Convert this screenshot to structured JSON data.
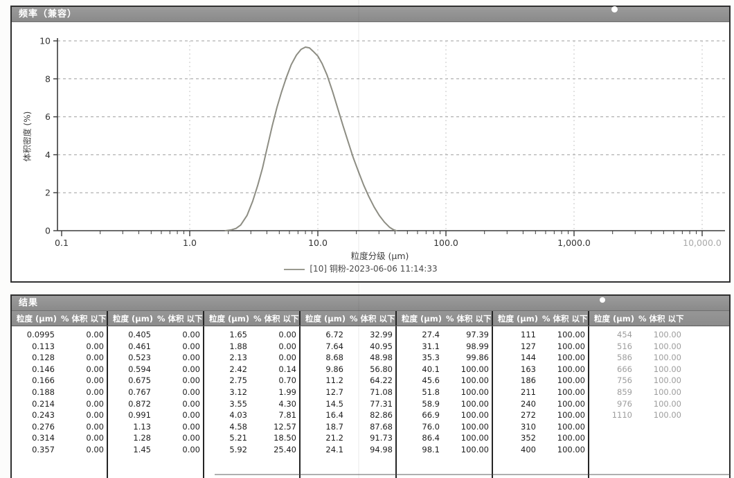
{
  "chart": {
    "panel_title": "频率（兼容）",
    "legend_text": "[10] 铜粉-2023-06-06 11:14:33",
    "colors": {
      "curve": "#8d8d83",
      "axis": "#3a3a3a",
      "h_grid": "#9e9e9e",
      "v_grid": "#c6c6c6",
      "titlebar": "#8f8f8f",
      "faded_tick": "#a9a9a9",
      "tick_text": "#333333"
    }
  },
  "chart_data": {
    "type": "line",
    "title": "频率（兼容）",
    "xlabel": "粒度分级 (μm)",
    "ylabel": "体积密度 (%)",
    "x_scale": "log",
    "xlim": [
      0.1,
      10000
    ],
    "ylim": [
      0,
      10
    ],
    "x_ticks": [
      "0.1",
      "1.0",
      "10.0",
      "100.0",
      "1,000.0",
      "10,000.0"
    ],
    "x_tick_values": [
      0.1,
      1,
      10,
      100,
      1000,
      10000
    ],
    "y_ticks": [
      0,
      2,
      4,
      6,
      8,
      10
    ],
    "grid": true,
    "legend_position": "bottom-center",
    "legend": [
      "[10] 铜粉-2023-06-06 11:14:33"
    ],
    "series": [
      {
        "name": "[10] 铜粉-2023-06-06 11:14:33",
        "points": [
          [
            1.9,
            0.0
          ],
          [
            2.1,
            0.04
          ],
          [
            2.3,
            0.12
          ],
          [
            2.5,
            0.3
          ],
          [
            2.8,
            0.8
          ],
          [
            3.1,
            1.55
          ],
          [
            3.4,
            2.4
          ],
          [
            3.7,
            3.3
          ],
          [
            4.0,
            4.3
          ],
          [
            4.4,
            5.5
          ],
          [
            4.8,
            6.5
          ],
          [
            5.2,
            7.3
          ],
          [
            5.7,
            8.1
          ],
          [
            6.2,
            8.75
          ],
          [
            6.8,
            9.25
          ],
          [
            7.4,
            9.55
          ],
          [
            8.0,
            9.67
          ],
          [
            8.6,
            9.63
          ],
          [
            9.2,
            9.45
          ],
          [
            10.0,
            9.2
          ],
          [
            10.8,
            8.8
          ],
          [
            11.8,
            8.2
          ],
          [
            13.0,
            7.35
          ],
          [
            14.3,
            6.45
          ],
          [
            15.7,
            5.55
          ],
          [
            17.2,
            4.7
          ],
          [
            18.9,
            3.85
          ],
          [
            20.8,
            3.1
          ],
          [
            22.8,
            2.4
          ],
          [
            25.0,
            1.8
          ],
          [
            27.5,
            1.25
          ],
          [
            30.2,
            0.8
          ],
          [
            33.1,
            0.45
          ],
          [
            36.3,
            0.18
          ],
          [
            39.0,
            0.05
          ],
          [
            41.0,
            0.0
          ]
        ]
      }
    ]
  },
  "results": {
    "panel_title": "结果",
    "col_headers": {
      "size": "粒度 (μm)",
      "pct": "% 体积 以下"
    },
    "groups": [
      {
        "rows": [
          [
            "0.0995",
            "0.00"
          ],
          [
            "0.113",
            "0.00"
          ],
          [
            "0.128",
            "0.00"
          ],
          [
            "0.146",
            "0.00"
          ],
          [
            "0.166",
            "0.00"
          ],
          [
            "0.188",
            "0.00"
          ],
          [
            "0.214",
            "0.00"
          ],
          [
            "0.243",
            "0.00"
          ],
          [
            "0.276",
            "0.00"
          ],
          [
            "0.314",
            "0.00"
          ],
          [
            "0.357",
            "0.00"
          ]
        ]
      },
      {
        "rows": [
          [
            "0.405",
            "0.00"
          ],
          [
            "0.461",
            "0.00"
          ],
          [
            "0.523",
            "0.00"
          ],
          [
            "0.594",
            "0.00"
          ],
          [
            "0.675",
            "0.00"
          ],
          [
            "0.767",
            "0.00"
          ],
          [
            "0.872",
            "0.00"
          ],
          [
            "0.991",
            "0.00"
          ],
          [
            "1.13",
            "0.00"
          ],
          [
            "1.28",
            "0.00"
          ],
          [
            "1.45",
            "0.00"
          ]
        ]
      },
      {
        "rows": [
          [
            "1.65",
            "0.00"
          ],
          [
            "1.88",
            "0.00"
          ],
          [
            "2.13",
            "0.00"
          ],
          [
            "2.42",
            "0.14"
          ],
          [
            "2.75",
            "0.70"
          ],
          [
            "3.12",
            "1.99"
          ],
          [
            "3.55",
            "4.30"
          ],
          [
            "4.03",
            "7.81"
          ],
          [
            "4.58",
            "12.57"
          ],
          [
            "5.21",
            "18.50"
          ],
          [
            "5.92",
            "25.40"
          ]
        ]
      },
      {
        "rows": [
          [
            "6.72",
            "32.99"
          ],
          [
            "7.64",
            "40.95"
          ],
          [
            "8.68",
            "48.98"
          ],
          [
            "9.86",
            "56.80"
          ],
          [
            "11.2",
            "64.22"
          ],
          [
            "12.7",
            "71.08"
          ],
          [
            "14.5",
            "77.31"
          ],
          [
            "16.4",
            "82.86"
          ],
          [
            "18.7",
            "87.68"
          ],
          [
            "21.2",
            "91.73"
          ],
          [
            "24.1",
            "94.98"
          ]
        ]
      },
      {
        "rows": [
          [
            "27.4",
            "97.39"
          ],
          [
            "31.1",
            "98.99"
          ],
          [
            "35.3",
            "99.86"
          ],
          [
            "40.1",
            "100.00"
          ],
          [
            "45.6",
            "100.00"
          ],
          [
            "51.8",
            "100.00"
          ],
          [
            "58.9",
            "100.00"
          ],
          [
            "66.9",
            "100.00"
          ],
          [
            "76.0",
            "100.00"
          ],
          [
            "86.4",
            "100.00"
          ],
          [
            "98.1",
            "100.00"
          ]
        ]
      },
      {
        "rows": [
          [
            "111",
            "100.00"
          ],
          [
            "127",
            "100.00"
          ],
          [
            "144",
            "100.00"
          ],
          [
            "163",
            "100.00"
          ],
          [
            "186",
            "100.00"
          ],
          [
            "211",
            "100.00"
          ],
          [
            "240",
            "100.00"
          ],
          [
            "272",
            "100.00"
          ],
          [
            "310",
            "100.00"
          ],
          [
            "352",
            "100.00"
          ],
          [
            "400",
            "100.00"
          ]
        ]
      },
      {
        "faded": true,
        "rows": [
          [
            "454",
            "100.00"
          ],
          [
            "516",
            "100.00"
          ],
          [
            "586",
            "100.00"
          ],
          [
            "666",
            "100.00"
          ],
          [
            "756",
            "100.00"
          ],
          [
            "859",
            "100.00"
          ],
          [
            "976",
            "100.00"
          ],
          [
            "1110",
            "100.00"
          ]
        ]
      }
    ]
  }
}
